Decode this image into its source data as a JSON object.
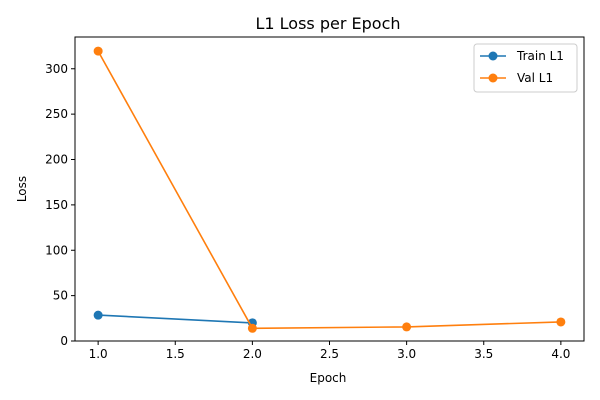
{
  "chart_data": {
    "type": "line",
    "title": "L1 Loss per Epoch",
    "xlabel": "Epoch",
    "ylabel": "Loss",
    "xlim": [
      0.85,
      4.15
    ],
    "ylim": [
      0,
      335
    ],
    "xticks": [
      "1.0",
      "1.5",
      "2.0",
      "2.5",
      "3.0",
      "3.5",
      "4.0"
    ],
    "yticks": [
      "0",
      "50",
      "100",
      "150",
      "200",
      "250",
      "300"
    ],
    "grid": false,
    "legend_position": "top-right",
    "series": [
      {
        "name": "Train L1",
        "color": "#1f77b4",
        "x": [
          1,
          2
        ],
        "y": [
          28.5,
          20.0
        ]
      },
      {
        "name": "Val L1",
        "color": "#ff7f0e",
        "x": [
          1,
          2,
          3,
          4
        ],
        "y": [
          319.5,
          14.0,
          15.5,
          21.0
        ]
      }
    ]
  }
}
